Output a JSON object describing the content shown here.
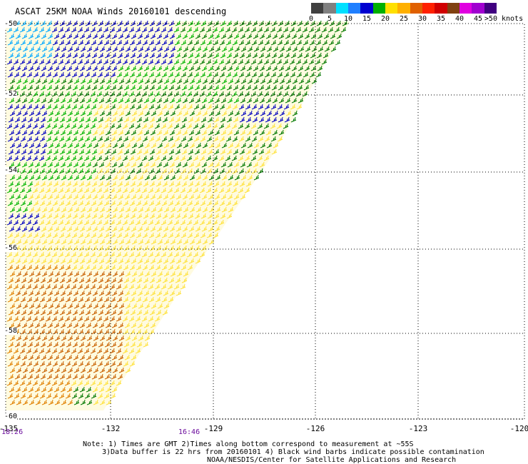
{
  "title": "ASCAT 25KM NOAA Winds 20160101 descending",
  "colorbar": {
    "units": "knots",
    "swatches": [
      "#404040",
      "#808080",
      "#00e0ff",
      "#1f7fff",
      "#0000d0",
      "#00b000",
      "#ffe000",
      "#ffb000",
      "#e06000",
      "#ff2000",
      "#d00000",
      "#804010",
      "#e000e0",
      "#a000d0",
      "#400080"
    ],
    "ticks": [
      "0",
      "5",
      "10",
      "15",
      "20",
      "25",
      "30",
      "35",
      "40",
      "45",
      ">50 knots"
    ]
  },
  "axes": {
    "lon_labels": [
      "-135",
      "-132",
      "-129",
      "-126",
      "-123",
      "-120"
    ],
    "lat_labels": [
      "-50",
      "-52",
      "-54",
      "-56",
      "-58",
      "-60"
    ],
    "lon_range": [
      -135,
      -120
    ],
    "lat_range": [
      -50,
      -60
    ],
    "grid": true
  },
  "times": {
    "left": "18:26",
    "mid": "16:46"
  },
  "notes": {
    "line1": "Note: 1) Times are GMT 2)Times along bottom correspond to measurement at ~55S",
    "line2": "3)Data buffer is 22 hrs from 20160101 4) Black wind barbs indicate possible contamination",
    "line3": "NOAA/NESDIS/Center for Satellite Applications and Research"
  },
  "swath_colors": {
    "blue": "#1a1aff",
    "darkblue": "#0000c0",
    "cyan": "#00a8ff",
    "green": "#00b400",
    "darkgreen": "#007800",
    "yellow": "#ffe23a",
    "orange": "#e08000",
    "darkorange": "#c86000"
  }
}
